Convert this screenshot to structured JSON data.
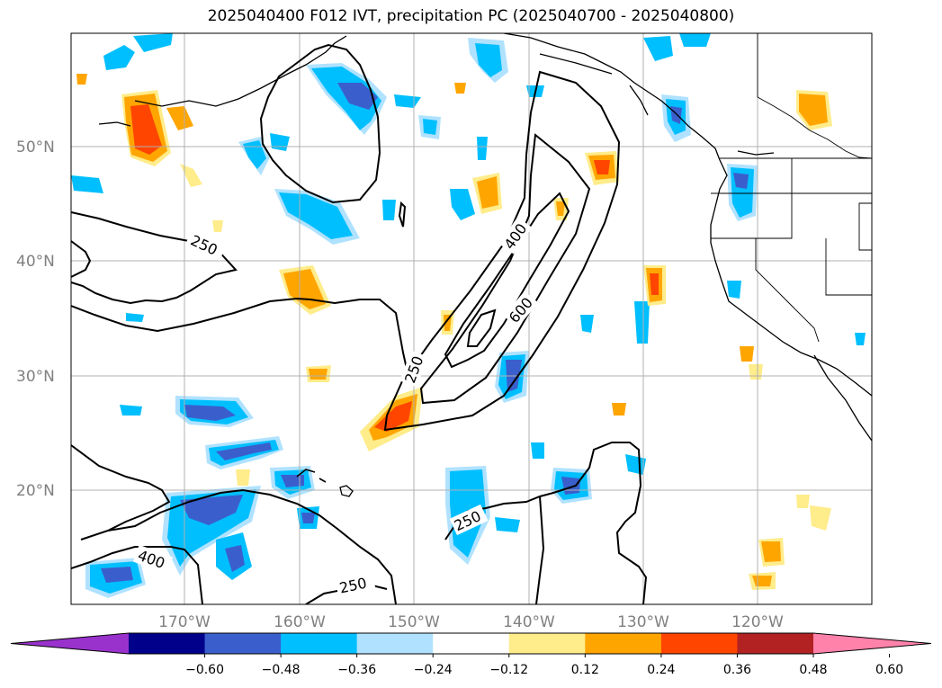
{
  "title": "2025040400 F012 IVT, precipitation PC (2025040700 - 2025040800)",
  "latitude_labels": [
    "50°N",
    "40°N",
    "30°N",
    "20°N"
  ],
  "longitude_labels": [
    "170°W",
    "160°W",
    "150°W",
    "140°W",
    "130°W",
    "120°W"
  ],
  "ivt_contour_levels": [
    "250",
    "400",
    "600"
  ],
  "ivt_contour_label_instances": [
    "250",
    "400",
    "600",
    "250",
    "250",
    "400",
    "250"
  ],
  "colorbar": {
    "tick_labels": [
      "−0.60",
      "−0.48",
      "−0.36",
      "−0.24",
      "−0.12",
      "0.12",
      "0.24",
      "0.36",
      "0.48",
      "0.60"
    ],
    "colors": [
      "#9932cc",
      "#00008b",
      "#3a5fcd",
      "#00bfff",
      "#b0e2ff",
      "#ffffff",
      "#ffec8b",
      "#ffa500",
      "#ff4500",
      "#b22222",
      "#ff82ab"
    ]
  },
  "colors": {
    "neg_strong": "#3a5fcd",
    "neg_mid": "#00bfff",
    "neg_weak": "#b0e2ff",
    "pos_weak": "#ffec8b",
    "pos_mid": "#ffa500",
    "pos_strong": "#ff4500",
    "grid": "#b0b0b0",
    "coast": "#000000"
  }
}
